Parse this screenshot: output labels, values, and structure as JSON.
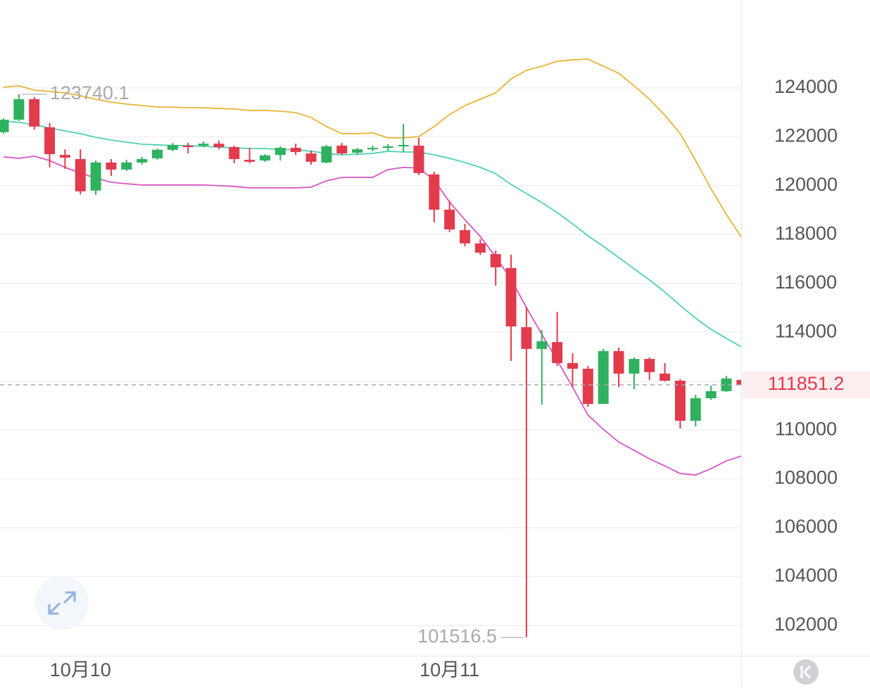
{
  "chart_data": {
    "type": "candlestick",
    "categories": [
      null,
      null,
      null,
      null,
      null,
      "10月10",
      null,
      null,
      null,
      null,
      null,
      null,
      null,
      null,
      null,
      null,
      null,
      null,
      null,
      null,
      null,
      null,
      null,
      null,
      null,
      null,
      null,
      null,
      null,
      "10月11",
      null,
      null,
      null,
      null,
      null,
      null,
      null,
      null,
      null,
      null,
      null,
      null,
      null,
      null,
      null,
      null,
      null,
      null,
      null
    ],
    "open": [
      122190,
      122700,
      123540,
      122390,
      121260,
      121090,
      119800,
      120950,
      120660,
      120950,
      121120,
      121470,
      121640,
      121640,
      121720,
      121580,
      121060,
      121030,
      121260,
      121550,
      121320,
      120950,
      121640,
      121350,
      121490,
      121550,
      121610,
      121640,
      120460,
      119020,
      118180,
      117640,
      117200,
      116630,
      114210,
      113320,
      113600,
      112740,
      112510,
      111070,
      113230,
      112310,
      112910,
      112310,
      112020,
      110380,
      111300,
      111590,
      112050
    ],
    "high": [
      122760,
      123740.1,
      123630,
      122560,
      121490,
      121490,
      121030,
      121090,
      121060,
      121180,
      121520,
      121750,
      121750,
      121810,
      121840,
      121640,
      121550,
      121290,
      121610,
      121720,
      121440,
      121670,
      121750,
      121550,
      121640,
      121700,
      122530,
      121960,
      120570,
      119390,
      118440,
      117810,
      117350,
      117170,
      115040,
      114090,
      114840,
      113140,
      112620,
      113320,
      113370,
      112970,
      112970,
      112740,
      112080,
      111440,
      111820,
      112220,
      112110
    ],
    "low": [
      122130,
      122650,
      122300,
      120750,
      120690,
      119650,
      119620,
      120400,
      120600,
      120860,
      121060,
      121410,
      121320,
      121580,
      121490,
      120920,
      120920,
      120980,
      121030,
      121260,
      120860,
      120920,
      121260,
      121260,
      121410,
      121440,
      121380,
      120430,
      118500,
      118100,
      117520,
      117170,
      115910,
      112830,
      101516.5,
      111040,
      112620,
      111760,
      110950,
      111070,
      111760,
      111670,
      112050,
      111990,
      110060,
      110150,
      111240,
      111560,
      111760
    ],
    "close": [
      122700,
      123540,
      122420,
      121290,
      121150,
      119770,
      120950,
      120660,
      120950,
      121090,
      121470,
      121670,
      121580,
      121720,
      121580,
      121090,
      120980,
      121240,
      121550,
      121380,
      120980,
      121610,
      121320,
      121490,
      121550,
      121610,
      121670,
      120520,
      119020,
      118210,
      117640,
      117260,
      116660,
      114240,
      113320,
      113630,
      112740,
      112510,
      111070,
      113230,
      112310,
      112910,
      112370,
      112020,
      110380,
      111300,
      111590,
      112110,
      111851.2
    ],
    "bollinger": {
      "upper": [
        124030,
        124090,
        123910,
        123860,
        123800,
        123680,
        123540,
        123420,
        123340,
        123280,
        123220,
        123220,
        123190,
        123190,
        123160,
        123140,
        123080,
        123080,
        123050,
        122990,
        122790,
        122420,
        122130,
        122130,
        122160,
        121960,
        121960,
        122010,
        122420,
        122910,
        123280,
        123540,
        123800,
        124370,
        124720,
        124890,
        125090,
        125150,
        125180,
        124890,
        124600,
        124090,
        123540,
        122880,
        122130,
        121030,
        119880,
        118820,
        117870
      ],
      "middle": [
        122650,
        122590,
        122500,
        122360,
        122240,
        122130,
        121980,
        121870,
        121780,
        121700,
        121670,
        121640,
        121640,
        121610,
        121580,
        121550,
        121520,
        121520,
        121490,
        121470,
        121410,
        121320,
        121260,
        121290,
        121320,
        121410,
        121380,
        121380,
        121260,
        121120,
        120950,
        120750,
        120490,
        120050,
        119680,
        119310,
        118900,
        118440,
        117950,
        117520,
        117060,
        116600,
        116140,
        115650,
        115100,
        114580,
        114120,
        113750,
        113400
      ],
      "lower": [
        121180,
        121120,
        121210,
        121030,
        120750,
        120520,
        120310,
        120140,
        120080,
        120030,
        120030,
        120030,
        120030,
        120030,
        120000,
        119970,
        119910,
        119910,
        119910,
        119910,
        119940,
        120200,
        120340,
        120340,
        120340,
        120660,
        120750,
        120720,
        120230,
        119330,
        118610,
        117920,
        117090,
        116170,
        115010,
        113920,
        112850,
        111760,
        110610,
        110030,
        109510,
        109170,
        108820,
        108530,
        108220,
        108160,
        108420,
        108740,
        108940
      ]
    },
    "colors": {
      "up": "#2fb15f",
      "down": "#e23b4c",
      "upper": "#e9b437",
      "middle": "#4fd3ad",
      "lower": "#d955c4"
    },
    "ylim": [
      100760,
      127600
    ],
    "yticks": [
      102000,
      104000,
      106000,
      108000,
      110000,
      112000,
      114000,
      116000,
      118000,
      120000,
      122000,
      124000
    ],
    "grid": true
  }
}
